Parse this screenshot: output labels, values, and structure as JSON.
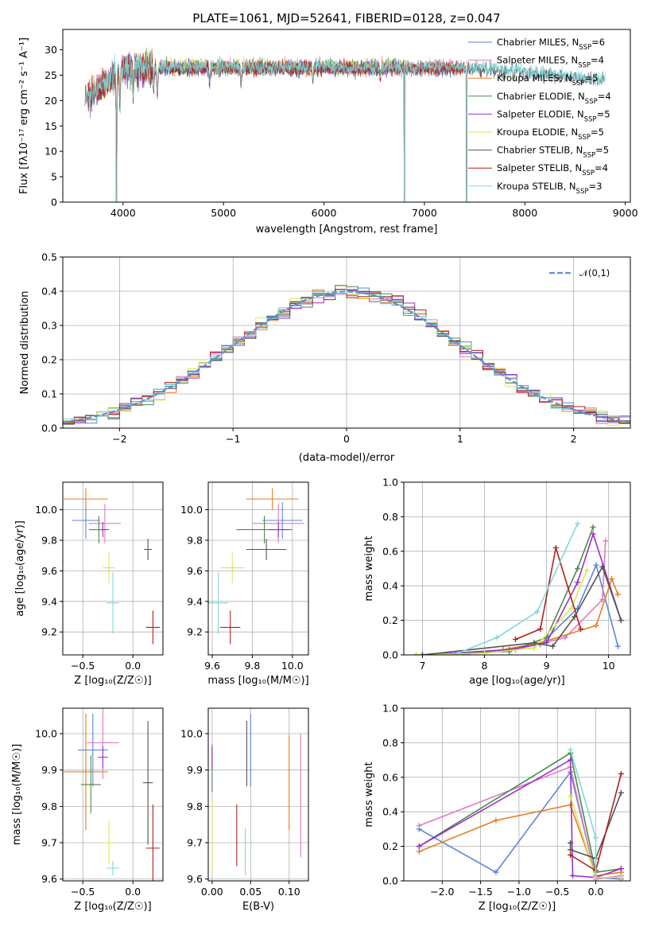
{
  "figure": {
    "title": "PLATE=1061, MJD=52641, FIBERID=0128, z=0.047"
  },
  "colors": {
    "Chabrier MILES": "#5b86d6",
    "Salpeter MILES": "#e377c2",
    "Kroupa MILES": "#e67e22",
    "Chabrier ELODIE": "#4a8a4a",
    "Salpeter ELODIE": "#9b30c9",
    "Kroupa ELODIE": "#d4e85a",
    "Chabrier STELIB": "#555555",
    "Salpeter STELIB": "#b22020",
    "Kroupa STELIB": "#7fd8dc",
    "normal": "#5b8fd6"
  },
  "chart_data": [
    {
      "id": "spectrum",
      "type": "line",
      "title": "PLATE=1061, MJD=52641, FIBERID=0128, z=0.047",
      "xlabel": "wavelength [Angstrom, rest frame]",
      "ylabel": "Flux [fλ10⁻¹⁷ erg cm⁻² s⁻¹ A⁻¹]",
      "xlim": [
        3400,
        9050
      ],
      "ylim": [
        0,
        34
      ],
      "xticks": [
        4000,
        5000,
        6000,
        7000,
        8000,
        9000
      ],
      "yticks": [
        0,
        5,
        10,
        15,
        20,
        25,
        30
      ],
      "grid": false,
      "legend_position": "upper-right",
      "series": [
        {
          "name": "Chabrier MILES",
          "nssp": 6,
          "range": [
            3650,
            7400
          ],
          "level": 26.5
        },
        {
          "name": "Salpeter MILES",
          "nssp": 4,
          "range": [
            3650,
            7400
          ],
          "level": 26.6
        },
        {
          "name": "Kroupa MILES",
          "nssp": 5,
          "range": [
            3650,
            7400
          ],
          "level": 26.4
        },
        {
          "name": "Chabrier ELODIE",
          "nssp": 4,
          "range": [
            3900,
            6800
          ],
          "level": 26.7
        },
        {
          "name": "Salpeter ELODIE",
          "nssp": 5,
          "range": [
            3900,
            6800
          ],
          "level": 26.5
        },
        {
          "name": "Kroupa ELODIE",
          "nssp": 5,
          "range": [
            3900,
            6800
          ],
          "level": 26.8
        },
        {
          "name": "Chabrier STELIB",
          "nssp": 5,
          "range": [
            3620,
            8800
          ],
          "level": 26.2
        },
        {
          "name": "Salpeter STELIB",
          "nssp": 4,
          "range": [
            3650,
            7450
          ],
          "level": 26.4
        },
        {
          "name": "Kroupa STELIB",
          "nssp": 3,
          "range": [
            3650,
            8800
          ],
          "level": 26.6
        }
      ],
      "features": [
        {
          "type": "drop",
          "x": 3935,
          "to": 0
        },
        {
          "type": "drop",
          "x": 6800,
          "to": 0
        },
        {
          "type": "drop",
          "x": 7420,
          "to": 0
        }
      ]
    },
    {
      "id": "residuals",
      "type": "histogram",
      "xlabel": "(data-model)/error",
      "ylabel": "Normed distribution",
      "xlim": [
        -2.5,
        2.5
      ],
      "ylim": [
        0,
        0.5
      ],
      "xticks": [
        -2,
        -1,
        0,
        1,
        2
      ],
      "yticks": [
        0.0,
        0.1,
        0.2,
        0.3,
        0.4,
        0.5
      ],
      "grid": true,
      "legend_position": "upper-right",
      "reference": {
        "name": "𝒩(0,1)",
        "mean": 0,
        "sigma": 1
      },
      "bins": {
        "start": -2.5,
        "width": 0.1,
        "count": 50
      }
    },
    {
      "id": "age-vs-Z",
      "type": "errorbar",
      "xlabel": "Z [log₁₀(Z/Z☉)]",
      "ylabel": "age  [log₁₀(age/yr)]",
      "xlim": [
        -0.7,
        0.3
      ],
      "ylim": [
        9.05,
        10.18
      ],
      "xticks": [
        -0.5,
        0.0
      ],
      "yticks": [
        9.2,
        9.4,
        9.6,
        9.8,
        10.0
      ],
      "grid": true,
      "points": [
        {
          "series": "Chabrier MILES",
          "x": -0.47,
          "xerr": 0.14,
          "y": 9.93,
          "yerr": 0.12
        },
        {
          "series": "Salpeter MILES",
          "x": -0.28,
          "xerr": 0.16,
          "y": 9.91,
          "yerr": 0.13
        },
        {
          "series": "Kroupa MILES",
          "x": -0.47,
          "xerr": 0.22,
          "y": 10.07,
          "yerr": 0.07
        },
        {
          "series": "Chabrier ELODIE",
          "x": -0.34,
          "xerr": 0.1,
          "y": 9.87,
          "yerr": 0.09
        },
        {
          "series": "Salpeter ELODIE",
          "x": -0.3,
          "xerr": 0.03,
          "y": 9.87,
          "yerr": 0.05
        },
        {
          "series": "Kroupa ELODIE",
          "x": -0.24,
          "xerr": 0.06,
          "y": 9.62,
          "yerr": 0.1
        },
        {
          "series": "Chabrier STELIB",
          "x": 0.15,
          "xerr": 0.04,
          "y": 9.74,
          "yerr": 0.07
        },
        {
          "series": "Salpeter STELIB",
          "x": 0.2,
          "xerr": 0.07,
          "y": 9.23,
          "yerr": 0.11
        },
        {
          "series": "Kroupa STELIB",
          "x": -0.2,
          "xerr": 0.06,
          "y": 9.39,
          "yerr": 0.2
        }
      ]
    },
    {
      "id": "age-vs-mass",
      "type": "errorbar",
      "xlabel": "mass [log₁₀(M/M☉)]",
      "ylabel": "",
      "xlim": [
        9.58,
        10.08
      ],
      "ylim": [
        9.05,
        10.18
      ],
      "xticks": [
        9.6,
        9.8,
        10.0
      ],
      "yticks": [
        9.2,
        9.4,
        9.6,
        9.8,
        10.0
      ],
      "grid": true,
      "points": [
        {
          "series": "Chabrier MILES",
          "x": 9.95,
          "xerr": 0.1,
          "y": 9.93,
          "yerr": 0.12
        },
        {
          "series": "Salpeter MILES",
          "x": 9.93,
          "xerr": 0.13,
          "y": 9.91,
          "yerr": 0.13
        },
        {
          "series": "Kroupa MILES",
          "x": 9.9,
          "xerr": 0.13,
          "y": 10.07,
          "yerr": 0.07
        },
        {
          "series": "Chabrier ELODIE",
          "x": 9.86,
          "xerr": 0.14,
          "y": 9.87,
          "yerr": 0.09
        },
        {
          "series": "Salpeter ELODIE",
          "x": 9.93,
          "xerr": 0.05,
          "y": 9.87,
          "yerr": 0.05
        },
        {
          "series": "Kroupa ELODIE",
          "x": 9.7,
          "xerr": 0.06,
          "y": 9.62,
          "yerr": 0.1
        },
        {
          "series": "Chabrier STELIB",
          "x": 9.87,
          "xerr": 0.1,
          "y": 9.74,
          "yerr": 0.07
        },
        {
          "series": "Salpeter STELIB",
          "x": 9.69,
          "xerr": 0.05,
          "y": 9.23,
          "yerr": 0.11
        },
        {
          "series": "Kroupa STELIB",
          "x": 9.63,
          "xerr": 0.05,
          "y": 9.39,
          "yerr": 0.2
        }
      ]
    },
    {
      "id": "weight-vs-age",
      "type": "line",
      "xlabel": "age  [log₁₀(age/yr)]",
      "ylabel": "mass weight",
      "xlim": [
        6.7,
        10.35
      ],
      "ylim": [
        0,
        1.0
      ],
      "xticks": [
        7,
        8,
        9,
        10
      ],
      "yticks": [
        0.0,
        0.2,
        0.4,
        0.6,
        0.8,
        1.0
      ],
      "grid": true,
      "series": [
        {
          "name": "Chabrier MILES",
          "x": [
            7.6,
            8.3,
            8.9,
            9.5,
            9.8,
            10.15
          ],
          "y": [
            0.0,
            0.03,
            0.06,
            0.27,
            0.52,
            0.05
          ]
        },
        {
          "name": "Salpeter MILES",
          "x": [
            7.0,
            8.5,
            9.3,
            9.9,
            9.95
          ],
          "y": [
            0.0,
            0.03,
            0.1,
            0.32,
            0.66
          ]
        },
        {
          "name": "Kroupa MILES",
          "x": [
            6.9,
            7.6,
            8.3,
            8.9,
            9.8,
            10.05,
            10.15
          ],
          "y": [
            0.0,
            0.01,
            0.03,
            0.07,
            0.17,
            0.44,
            0.35
          ]
        },
        {
          "name": "Chabrier ELODIE",
          "x": [
            6.9,
            8.4,
            9.0,
            9.5,
            9.75
          ],
          "y": [
            0.0,
            0.02,
            0.1,
            0.5,
            0.74
          ]
        },
        {
          "name": "Salpeter ELODIE",
          "x": [
            7.0,
            8.4,
            9.0,
            9.5,
            9.75,
            10.2
          ],
          "y": [
            0.0,
            0.03,
            0.07,
            0.42,
            0.7,
            0.2
          ]
        },
        {
          "name": "Kroupa ELODIE",
          "x": [
            6.9,
            8.0,
            8.8,
            9.4,
            9.65
          ],
          "y": [
            0.0,
            0.01,
            0.04,
            0.27,
            0.49
          ]
        },
        {
          "name": "Chabrier STELIB",
          "x": [
            7.0,
            8.8,
            9.1,
            9.45,
            9.9,
            10.2
          ],
          "y": [
            0.0,
            0.07,
            0.05,
            0.22,
            0.51,
            0.2
          ]
        },
        {
          "name": "Salpeter STELIB",
          "x": [
            8.5,
            8.9,
            9.15,
            9.55
          ],
          "y": [
            0.09,
            0.15,
            0.62,
            0.15
          ]
        },
        {
          "name": "Kroupa STELIB",
          "x": [
            7.5,
            8.2,
            8.85,
            9.5
          ],
          "y": [
            0.0,
            0.1,
            0.25,
            0.76
          ]
        }
      ]
    },
    {
      "id": "mass-vs-Z",
      "type": "errorbar",
      "xlabel": "Z [log₁₀(Z/Z☉)]",
      "ylabel": "mass [log₁₀(M/M☉)]",
      "xlim": [
        -0.7,
        0.3
      ],
      "ylim": [
        9.595,
        10.07
      ],
      "xticks": [
        -0.5,
        0.0
      ],
      "yticks": [
        9.6,
        9.7,
        9.8,
        9.9,
        10.0
      ],
      "grid": true,
      "points": [
        {
          "series": "Chabrier MILES",
          "x": -0.4,
          "xerr": 0.15,
          "y": 9.955,
          "yerr": 0.1
        },
        {
          "series": "Salpeter MILES",
          "x": -0.3,
          "xerr": 0.16,
          "y": 9.975,
          "yerr": 0.1
        },
        {
          "series": "Kroupa MILES",
          "x": -0.47,
          "xerr": 0.22,
          "y": 9.895,
          "yerr": 0.16
        },
        {
          "series": "Chabrier ELODIE",
          "x": -0.42,
          "xerr": 0.1,
          "y": 9.86,
          "yerr": 0.08
        },
        {
          "series": "Salpeter ELODIE",
          "x": -0.3,
          "xerr": 0.05,
          "y": 9.935,
          "yerr": 0.03
        },
        {
          "series": "Kroupa ELODIE",
          "x": -0.24,
          "xerr": 0.06,
          "y": 9.7,
          "yerr": 0.06
        },
        {
          "series": "Chabrier STELIB",
          "x": 0.15,
          "xerr": 0.05,
          "y": 9.865,
          "yerr": 0.17
        },
        {
          "series": "Salpeter STELIB",
          "x": 0.2,
          "xerr": 0.07,
          "y": 9.685,
          "yerr": 0.12
        },
        {
          "series": "Kroupa STELIB",
          "x": -0.2,
          "xerr": 0.06,
          "y": 9.63,
          "yerr": 0.02
        }
      ]
    },
    {
      "id": "mass-vs-ebv",
      "type": "errorbar",
      "xlabel": "E(B-V)",
      "ylabel": "",
      "xlim": [
        -0.005,
        0.125
      ],
      "ylim": [
        9.595,
        10.07
      ],
      "xticks": [
        0.0,
        0.05,
        0.1
      ],
      "yticks": [
        9.6,
        9.7,
        9.8,
        9.9,
        10.0
      ],
      "grid": true,
      "points": [
        {
          "series": "Chabrier MILES",
          "x": 0.05,
          "xerr": 0,
          "y": 9.955,
          "yerr": 0.1
        },
        {
          "series": "Salpeter MILES",
          "x": 0.115,
          "xerr": 0,
          "y": 9.83,
          "yerr": 0.17
        },
        {
          "series": "Kroupa MILES",
          "x": 0.1,
          "xerr": 0,
          "y": 9.865,
          "yerr": 0.13
        },
        {
          "series": "Chabrier ELODIE",
          "x": 0.0,
          "xerr": 0,
          "y": 9.9,
          "yerr": 0.06
        },
        {
          "series": "Salpeter ELODIE",
          "x": 0.0,
          "xerr": 0,
          "y": 9.935,
          "yerr": 0.035
        },
        {
          "series": "Kroupa ELODIE",
          "x": 0.0,
          "xerr": 0,
          "y": 9.72,
          "yerr": 0.1
        },
        {
          "series": "Chabrier STELIB",
          "x": 0.045,
          "xerr": 0,
          "y": 9.945,
          "yerr": 0.09
        },
        {
          "series": "Salpeter STELIB",
          "x": 0.032,
          "xerr": 0,
          "y": 9.72,
          "yerr": 0.085
        },
        {
          "series": "Kroupa STELIB",
          "x": 0.043,
          "xerr": 0,
          "y": 9.675,
          "yerr": 0.065
        }
      ]
    },
    {
      "id": "weight-vs-Z",
      "type": "line",
      "xlabel": "Z [log₁₀(Z/Z☉)]",
      "ylabel": "mass weight",
      "xlim": [
        -2.5,
        0.45
      ],
      "ylim": [
        0,
        1.0
      ],
      "xticks": [
        -2.0,
        -1.5,
        -1.0,
        -0.5,
        0.0
      ],
      "yticks": [
        0.0,
        0.2,
        0.4,
        0.6,
        0.8,
        1.0
      ],
      "grid": true,
      "series": [
        {
          "name": "Chabrier MILES",
          "x": [
            -2.3,
            -1.3,
            -0.33,
            0.0,
            0.33
          ],
          "y": [
            0.3,
            0.05,
            0.63,
            0.02,
            0.01
          ]
        },
        {
          "name": "Salpeter MILES",
          "x": [
            -2.3,
            -0.33,
            0.0,
            0.33
          ],
          "y": [
            0.32,
            0.66,
            0.01,
            0.03
          ]
        },
        {
          "name": "Kroupa MILES",
          "x": [
            -2.3,
            -1.3,
            -0.33,
            0.0,
            0.33
          ],
          "y": [
            0.17,
            0.35,
            0.44,
            0.03,
            0.05
          ]
        },
        {
          "name": "Chabrier ELODIE",
          "x": [
            -2.3,
            -0.33,
            0.0,
            0.33
          ],
          "y": [
            0.2,
            0.74,
            0.05,
            0.07
          ]
        },
        {
          "name": "Salpeter ELODIE",
          "x": [
            -2.3,
            -0.33,
            -0.3,
            0.0,
            0.33
          ],
          "y": [
            0.2,
            0.7,
            0.03,
            0.02,
            0.07
          ]
        },
        {
          "name": "Kroupa ELODIE",
          "x": [
            -0.33,
            0.0,
            0.33
          ],
          "y": [
            0.49,
            0.02,
            0.02
          ]
        },
        {
          "name": "Chabrier STELIB",
          "x": [
            -0.33,
            -0.33,
            0.0,
            0.33
          ],
          "y": [
            0.22,
            0.18,
            0.13,
            0.51
          ]
        },
        {
          "name": "Salpeter STELIB",
          "x": [
            -0.33,
            0.0,
            0.33
          ],
          "y": [
            0.15,
            0.06,
            0.62
          ]
        },
        {
          "name": "Kroupa STELIB",
          "x": [
            -0.33,
            0.0,
            0.0
          ],
          "y": [
            0.76,
            0.25,
            0.0
          ]
        }
      ]
    }
  ]
}
